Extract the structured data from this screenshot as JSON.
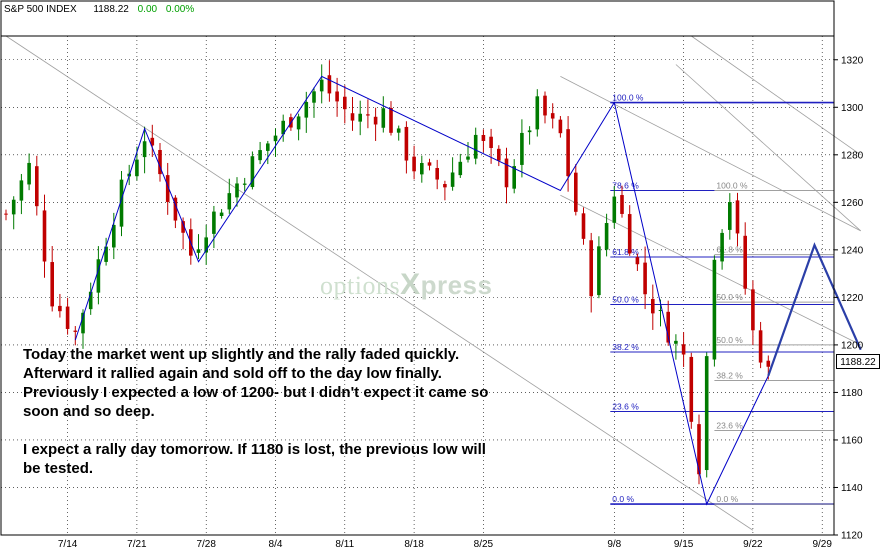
{
  "header": {
    "symbol": "S&P 500 INDEX",
    "last": "1188.22",
    "change": "0.00",
    "change_pct": "0.00%"
  },
  "note": {
    "paragraph1": "Today the market went up slightly and the rally faded quickly.  Afterward it rallied again and sold off to the day low finally.  Previously I expected a low of 1200- but I didn't expect it came so soon and so deep.",
    "paragraph2": "I expect a rally day tomorrow.  If 1180 is lost, the previous low will be tested."
  },
  "watermark": {
    "part1": "options",
    "part2": "X",
    "part3": "press"
  },
  "last_badge": "1188.22",
  "colors": {
    "up": "#007a00",
    "down": "#c00000",
    "trend": "#0000c8",
    "fib_main": "#2020c0",
    "fib_secondary": "#a0a0a0",
    "grid": "#000000"
  },
  "chart_data": {
    "type": "candlestick",
    "title": "S&P 500 INDEX",
    "ylim": [
      1120,
      1330
    ],
    "y_ticks": [
      1320,
      1300,
      1280,
      1260,
      1240,
      1220,
      1200,
      1180,
      1160,
      1140,
      1120
    ],
    "x_ticks": [
      "7/14",
      "7/21",
      "7/28",
      "8/4",
      "8/11",
      "8/18",
      "8/25",
      "9/8",
      "9/15",
      "9/22",
      "9/29"
    ],
    "grid": true,
    "path_anchors": [
      {
        "day": 0,
        "value": 1255
      },
      {
        "day": 3,
        "value": 1275
      },
      {
        "day": 6,
        "value": 1220
      },
      {
        "day": 9,
        "value": 1205
      },
      {
        "day": 15,
        "value": 1265
      },
      {
        "day": 18,
        "value": 1288
      },
      {
        "day": 24,
        "value": 1238
      },
      {
        "day": 26,
        "value": 1250
      },
      {
        "day": 30,
        "value": 1268
      },
      {
        "day": 34,
        "value": 1285
      },
      {
        "day": 41,
        "value": 1310
      },
      {
        "day": 45,
        "value": 1295
      },
      {
        "day": 49,
        "value": 1298
      },
      {
        "day": 53,
        "value": 1275
      },
      {
        "day": 57,
        "value": 1268
      },
      {
        "day": 61,
        "value": 1288
      },
      {
        "day": 65,
        "value": 1270
      },
      {
        "day": 69,
        "value": 1300
      },
      {
        "day": 72,
        "value": 1288
      },
      {
        "day": 76,
        "value": 1225
      },
      {
        "day": 79,
        "value": 1265
      },
      {
        "day": 83,
        "value": 1222
      },
      {
        "day": 88,
        "value": 1195
      },
      {
        "day": 90,
        "value": 1150
      },
      {
        "day": 92,
        "value": 1240
      },
      {
        "day": 94,
        "value": 1262
      },
      {
        "day": 97,
        "value": 1205
      },
      {
        "day": 99,
        "value": 1188
      }
    ],
    "trendlines": [
      {
        "points": [
          [
            9,
            1202
          ],
          [
            18,
            1291
          ],
          [
            25,
            1235
          ],
          [
            41,
            1313
          ],
          [
            72,
            1265
          ],
          [
            79,
            1302
          ],
          [
            91,
            1133
          ],
          [
            99,
            1187
          ],
          [
            105,
            1242
          ],
          [
            111,
            1198
          ]
        ]
      }
    ],
    "fib_primary": {
      "start_day": 79,
      "end_day": 111,
      "levels": [
        {
          "label": "100.0 %",
          "value": 1302
        },
        {
          "label": "78.6 %",
          "value": 1265
        },
        {
          "label": "61.8 %",
          "value": 1237
        },
        {
          "label": "50.0 %",
          "value": 1217
        },
        {
          "label": "38.2 %",
          "value": 1197
        },
        {
          "label": "23.6 %",
          "value": 1172
        },
        {
          "label": "0.0 %",
          "value": 1133
        }
      ]
    },
    "fib_secondary": {
      "start_day": 92,
      "end_day": 111,
      "levels": [
        {
          "label": "100.0 %",
          "value": 1265
        },
        {
          "label": "61.8 %",
          "value": 1238
        },
        {
          "label": "50.0 %",
          "value": 1218
        },
        {
          "label": "50.0 %",
          "value": 1200
        },
        {
          "label": "38.2 %",
          "value": 1185
        },
        {
          "label": "23.6 %",
          "value": 1164
        },
        {
          "label": "0.0 %",
          "value": 1133
        }
      ]
    },
    "gray_lines": [
      {
        "from": [
          72,
          1313
        ],
        "to": [
          111,
          1248
        ]
      },
      {
        "from": [
          72,
          1263
        ],
        "to": [
          111,
          1200
        ]
      },
      {
        "from": [
          87,
          1318
        ],
        "to": [
          111,
          1248
        ]
      },
      {
        "from": [
          89,
          1330
        ],
        "to": [
          111,
          1280
        ]
      },
      {
        "from": [
          0,
          1330
        ],
        "to": [
          97,
          1122
        ]
      }
    ]
  }
}
